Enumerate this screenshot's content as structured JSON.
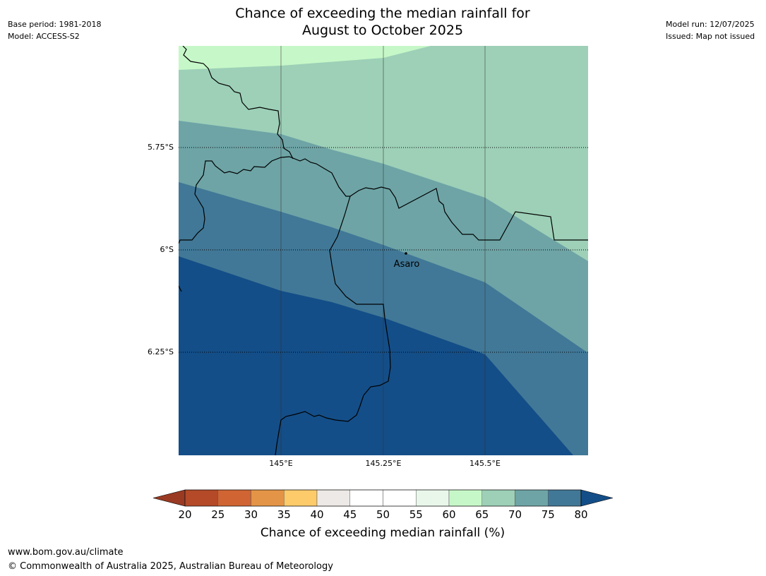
{
  "header": {
    "title_line1": "Chance of exceeding the median rainfall for",
    "title_line2": "August to October 2025",
    "base_period": "Base period: 1981-2018",
    "model": "Model: ACCESS-S2",
    "model_run": "Model run: 12/07/2025",
    "issued": "Issued: Map not issued"
  },
  "map": {
    "lat_labels": [
      "5.75°S",
      "6°S",
      "6.25°S"
    ],
    "lon_labels": [
      "145°E",
      "145.25°E",
      "145.5°E"
    ],
    "place": {
      "name": "Asaro"
    },
    "colors": {
      "band_60_65": "#c6f7c8",
      "band_65_70": "#9dd0b7",
      "band_70_75": "#6ea4a6",
      "band_75_80": "#417897",
      "band_above_80": "#144e88"
    }
  },
  "colorbar": {
    "label": "Chance of exceeding median rainfall (%)",
    "ticks": [
      "20",
      "25",
      "30",
      "35",
      "40",
      "45",
      "50",
      "55",
      "60",
      "65",
      "70",
      "75",
      "80"
    ],
    "below_color": "#9a3a23",
    "above_color": "#144e88",
    "colors": [
      "#b44a27",
      "#d06432",
      "#e39446",
      "#fdcb6a",
      "#ece9e6",
      "#ffffff",
      "#ffffff",
      "#e9f7ea",
      "#c6f7c8",
      "#9dd0b7",
      "#6ea4a6",
      "#417897"
    ]
  },
  "footer": {
    "url": "www.bom.gov.au/climate",
    "copyright": "© Commonwealth of Australia 2025, Australian Bureau of Meteorology"
  }
}
